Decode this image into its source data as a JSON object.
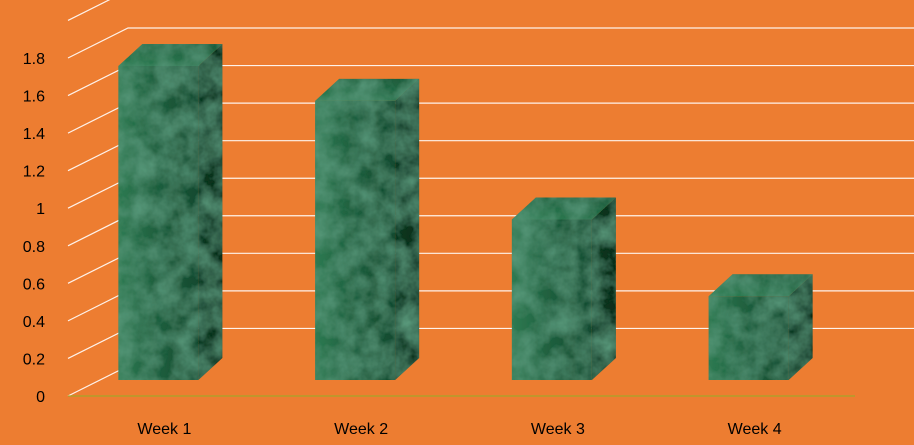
{
  "chart_data": {
    "type": "bar",
    "style": "3d-column",
    "title": "",
    "xlabel": "",
    "ylabel": "",
    "categories": [
      "Week 1",
      "Week 2",
      "Week 3",
      "Week 4"
    ],
    "values": [
      1.8,
      1.6,
      0.92,
      0.48
    ],
    "ylim": [
      0,
      1.8
    ],
    "yticks": [
      "0",
      "0.2",
      "0.4",
      "0.6",
      "0.8",
      "1",
      "1.2",
      "1.4",
      "1.6",
      "1.8"
    ],
    "grid": true,
    "legend": "none"
  },
  "colors": {
    "background": "#ED7D31",
    "gridline": "#FFFFFF",
    "bar_base": "#1E5A3A",
    "bar_texture": "green marble",
    "axis_baseline": "#A5A52A"
  }
}
